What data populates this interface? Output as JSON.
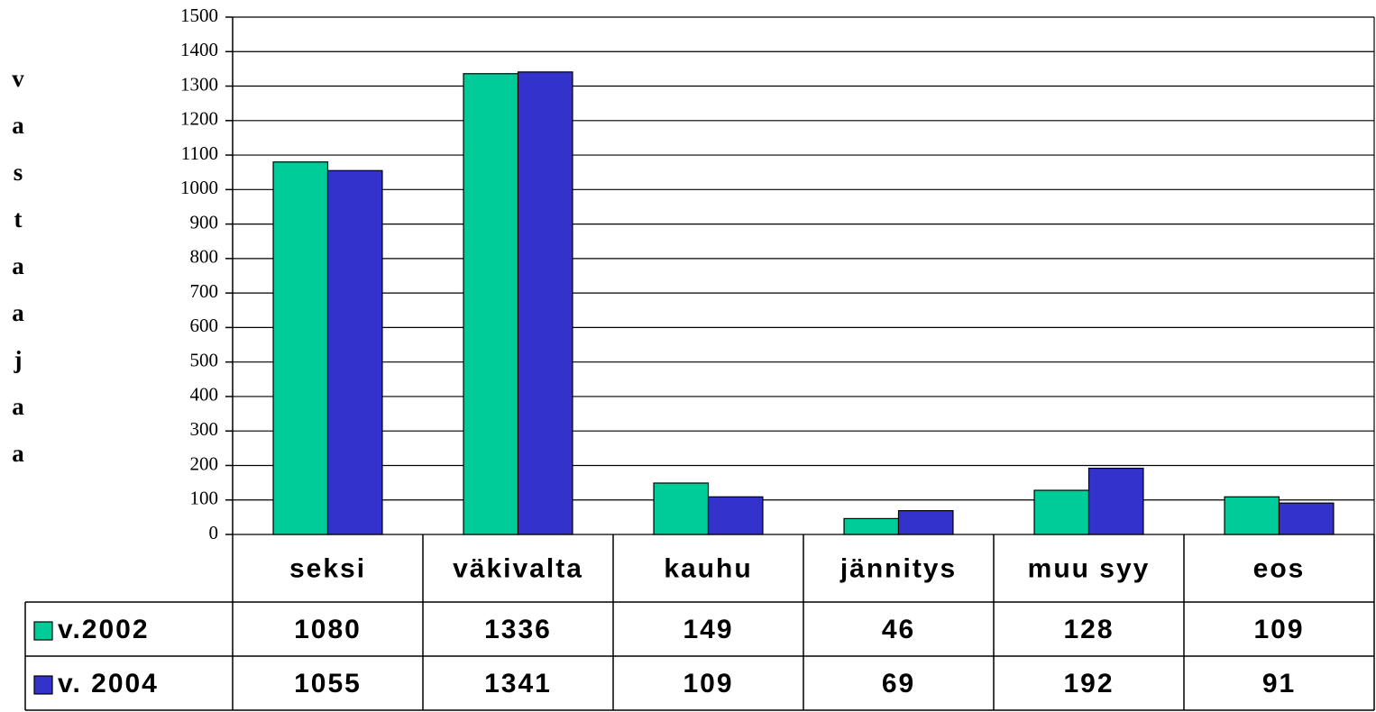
{
  "chart_data": {
    "type": "bar",
    "y_label": "vastaajaa",
    "categories": [
      "seksi",
      "väkivalta",
      "kauhu",
      "jännitys",
      "muu syy",
      "eos"
    ],
    "series": [
      {
        "name": "v.2002",
        "color": "#00cc99",
        "values": [
          1080,
          1336,
          149,
          46,
          128,
          109
        ]
      },
      {
        "name": "v. 2004",
        "color": "#3333cc",
        "values": [
          1055,
          1341,
          109,
          69,
          192,
          91
        ]
      }
    ],
    "ylim": [
      0,
      1500
    ],
    "yticks": [
      0,
      100,
      200,
      300,
      400,
      500,
      600,
      700,
      800,
      900,
      1000,
      1100,
      1200,
      1300,
      1400,
      1500
    ],
    "grid": true,
    "data_table": true
  }
}
